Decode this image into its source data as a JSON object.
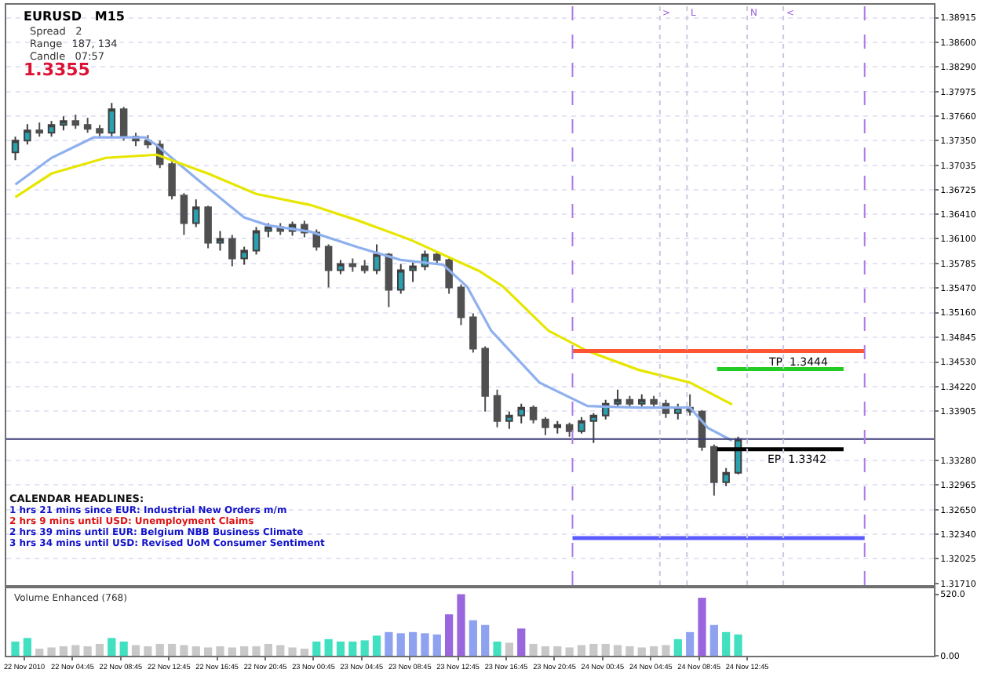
{
  "chart_data": [
    {
      "type": "candlestick",
      "tick_labels": "y",
      "grid": "y",
      "x": [
        "2010-11-22T00:00",
        "2010-11-22T01:00",
        "2010-11-22T02:00",
        "2010-11-22T03:00",
        "2010-11-22T04:00",
        "2010-11-22T05:00",
        "2010-11-22T06:00",
        "2010-11-22T07:00",
        "2010-11-22T08:00",
        "2010-11-22T09:00",
        "2010-11-22T10:00",
        "2010-11-22T11:00",
        "2010-11-22T12:00",
        "2010-11-22T13:00",
        "2010-11-22T14:00",
        "2010-11-22T15:00",
        "2010-11-22T16:00",
        "2010-11-22T17:00",
        "2010-11-22T18:00",
        "2010-11-22T19:00",
        "2010-11-22T20:00",
        "2010-11-22T21:00",
        "2010-11-22T22:00",
        "2010-11-22T23:00",
        "2010-11-23T00:00",
        "2010-11-23T01:00",
        "2010-11-23T02:00",
        "2010-11-23T03:00",
        "2010-11-23T04:00",
        "2010-11-23T05:00",
        "2010-11-23T06:00",
        "2010-11-23T07:00",
        "2010-11-23T08:00",
        "2010-11-23T09:00",
        "2010-11-23T10:00",
        "2010-11-23T11:00",
        "2010-11-23T12:00",
        "2010-11-23T13:00",
        "2010-11-23T14:00",
        "2010-11-23T15:00",
        "2010-11-23T16:00",
        "2010-11-23T17:00",
        "2010-11-23T18:00",
        "2010-11-23T19:00",
        "2010-11-23T20:00",
        "2010-11-23T21:00",
        "2010-11-23T22:00",
        "2010-11-23T23:00",
        "2010-11-24T00:00",
        "2010-11-24T01:00",
        "2010-11-24T02:00",
        "2010-11-24T03:00",
        "2010-11-24T04:00",
        "2010-11-24T05:00",
        "2010-11-24T06:00",
        "2010-11-24T07:00",
        "2010-11-24T08:00",
        "2010-11-24T09:00",
        "2010-11-24T10:00",
        "2010-11-24T11:00",
        "2010-11-24T12:00"
      ],
      "ohlc": [
        [
          1.372,
          1.374,
          1.371,
          1.3735
        ],
        [
          1.3735,
          1.3756,
          1.373,
          1.3748
        ],
        [
          1.3748,
          1.3758,
          1.374,
          1.3745
        ],
        [
          1.3745,
          1.376,
          1.374,
          1.3755
        ],
        [
          1.3755,
          1.3766,
          1.3748,
          1.376
        ],
        [
          1.376,
          1.3768,
          1.375,
          1.3755
        ],
        [
          1.3755,
          1.3764,
          1.3745,
          1.375
        ],
        [
          1.375,
          1.3755,
          1.3738,
          1.3745
        ],
        [
          1.3745,
          1.3783,
          1.374,
          1.3775
        ],
        [
          1.3775,
          1.3778,
          1.3735,
          1.374
        ],
        [
          1.374,
          1.3745,
          1.3728,
          1.3735
        ],
        [
          1.3735,
          1.3742,
          1.3725,
          1.373
        ],
        [
          1.373,
          1.3735,
          1.37,
          1.3705
        ],
        [
          1.3705,
          1.3708,
          1.366,
          1.3665
        ],
        [
          1.3665,
          1.3668,
          1.3615,
          1.363
        ],
        [
          1.363,
          1.366,
          1.3625,
          1.365
        ],
        [
          1.365,
          1.3652,
          1.3598,
          1.3605
        ],
        [
          1.3605,
          1.362,
          1.3595,
          1.361
        ],
        [
          1.361,
          1.3615,
          1.3575,
          1.3585
        ],
        [
          1.3585,
          1.36,
          1.3577,
          1.3595
        ],
        [
          1.3595,
          1.3625,
          1.359,
          1.362
        ],
        [
          1.362,
          1.363,
          1.3612,
          1.3625
        ],
        [
          1.3625,
          1.363,
          1.3615,
          1.362
        ],
        [
          1.362,
          1.3632,
          1.3614,
          1.3628
        ],
        [
          1.3628,
          1.3633,
          1.3612,
          1.3618
        ],
        [
          1.3618,
          1.3622,
          1.3595,
          1.36
        ],
        [
          1.36,
          1.3603,
          1.3548,
          1.357
        ],
        [
          1.357,
          1.3583,
          1.3565,
          1.3578
        ],
        [
          1.3578,
          1.3585,
          1.3568,
          1.3575
        ],
        [
          1.3575,
          1.3583,
          1.3566,
          1.357
        ],
        [
          1.357,
          1.3603,
          1.3565,
          1.359
        ],
        [
          1.359,
          1.3592,
          1.3523,
          1.3545
        ],
        [
          1.3545,
          1.3578,
          1.354,
          1.357
        ],
        [
          1.357,
          1.358,
          1.3555,
          1.3575
        ],
        [
          1.3575,
          1.3595,
          1.357,
          1.359
        ],
        [
          1.359,
          1.3593,
          1.3578,
          1.3583
        ],
        [
          1.3583,
          1.3585,
          1.354,
          1.3548
        ],
        [
          1.3548,
          1.3552,
          1.35,
          1.351
        ],
        [
          1.351,
          1.3515,
          1.3465,
          1.347
        ],
        [
          1.347,
          1.3473,
          1.339,
          1.341
        ],
        [
          1.341,
          1.3418,
          1.337,
          1.3378
        ],
        [
          1.3378,
          1.339,
          1.3368,
          1.3385
        ],
        [
          1.3385,
          1.34,
          1.3375,
          1.3395
        ],
        [
          1.3395,
          1.3398,
          1.3375,
          1.338
        ],
        [
          1.338,
          1.3383,
          1.336,
          1.337
        ],
        [
          1.337,
          1.3378,
          1.3362,
          1.3373
        ],
        [
          1.3373,
          1.3376,
          1.3358,
          1.3365
        ],
        [
          1.3365,
          1.3383,
          1.3362,
          1.3378
        ],
        [
          1.3378,
          1.3388,
          1.335,
          1.3385
        ],
        [
          1.3385,
          1.3405,
          1.338,
          1.34
        ],
        [
          1.34,
          1.3418,
          1.3395,
          1.3405
        ],
        [
          1.3405,
          1.341,
          1.3395,
          1.34
        ],
        [
          1.34,
          1.3412,
          1.3396,
          1.3405
        ],
        [
          1.3405,
          1.341,
          1.3395,
          1.34
        ],
        [
          1.34,
          1.3405,
          1.3382,
          1.3388
        ],
        [
          1.3388,
          1.34,
          1.338,
          1.3395
        ],
        [
          1.3395,
          1.3412,
          1.3385,
          1.339
        ],
        [
          1.339,
          1.3392,
          1.334,
          1.3345
        ],
        [
          1.3345,
          1.3348,
          1.3283,
          1.33
        ],
        [
          1.33,
          1.3318,
          1.3295,
          1.3312
        ],
        [
          1.3312,
          1.3358,
          1.331,
          1.3355
        ]
      ],
      "series": [
        {
          "type": "line",
          "color": "#8fb0ee",
          "x": [
            "2010-11-22T00:00",
            "2010-11-22T03:00",
            "2010-11-22T06:30",
            "2010-11-22T10:45",
            "2010-11-22T11:45",
            "2010-11-22T15:00",
            "2010-11-22T19:00",
            "2010-11-22T21:00",
            "2010-11-23T00:30",
            "2010-11-23T04:30",
            "2010-11-23T08:00",
            "2010-11-23T11:30",
            "2010-11-23T13:30",
            "2010-11-23T15:30",
            "2010-11-23T19:30",
            "2010-11-23T23:30",
            "2010-11-24T03:45",
            "2010-11-24T08:00",
            "2010-11-24T09:30",
            "2010-11-24T11:30"
          ],
          "values": [
            1.3679,
            1.3713,
            1.3739,
            1.3739,
            1.3729,
            1.3687,
            1.3637,
            1.3627,
            1.3619,
            1.3599,
            1.3583,
            1.3577,
            1.3549,
            1.3493,
            1.3427,
            1.3397,
            1.3395,
            1.3395,
            1.3369,
            1.3353
          ]
        },
        {
          "type": "line",
          "color": "#e6e600",
          "x": [
            "2010-11-22T00:00",
            "2010-11-22T03:00",
            "2010-11-22T07:30",
            "2010-11-22T11:45",
            "2010-11-22T16:00",
            "2010-11-22T20:00",
            "2010-11-23T00:30",
            "2010-11-23T04:30",
            "2010-11-23T08:45",
            "2010-11-23T14:30",
            "2010-11-23T16:30",
            "2010-11-23T20:15",
            "2010-11-23T23:30",
            "2010-11-24T03:45",
            "2010-11-24T08:00",
            "2010-11-24T11:30"
          ],
          "values": [
            1.3663,
            1.3693,
            1.3713,
            1.3717,
            1.3693,
            1.3667,
            1.3653,
            1.3633,
            1.3609,
            1.3569,
            1.3549,
            1.3493,
            1.3467,
            1.3443,
            1.3427,
            1.3399
          ]
        },
        {
          "type": "line",
          "color": "#ff5533",
          "x": [
            "2010-11-23T22:15",
            "2010-11-24T22:30"
          ],
          "values": [
            1.3467,
            1.3467
          ]
        },
        {
          "type": "line",
          "color": "#5a5aff",
          "x": [
            "2010-11-23T22:15",
            "2010-11-24T22:30"
          ],
          "values": [
            1.3229,
            1.3229
          ]
        },
        {
          "type": "line",
          "color": "#22cc22",
          "x": [
            "2010-11-24T10:15",
            "2010-11-24T20:45"
          ],
          "values": [
            1.3444,
            1.3444
          ]
        },
        {
          "type": "line",
          "color": "#000000",
          "x": [
            "2010-11-24T10:15",
            "2010-11-24T20:45"
          ],
          "values": [
            1.3342,
            1.3342
          ]
        }
      ],
      "ref_lines": [
        {
          "axis": "y",
          "value": 1.3355,
          "color": "#3c3c78"
        },
        {
          "axis": "x",
          "value": "2010-11-23T22:15",
          "color": "#b07ae6",
          "line_style": "dashed"
        },
        {
          "axis": "x",
          "value": "2010-11-24T22:30",
          "color": "#b07ae6",
          "line_style": "dashed"
        },
        {
          "axis": "x",
          "value": "2010-11-24T05:30",
          "label": ">",
          "color": "#c8c8e0",
          "line_style": "dotted"
        },
        {
          "axis": "x",
          "value": "2010-11-24T07:45",
          "label": "L",
          "color": "#c8c8e0",
          "line_style": "dotted"
        },
        {
          "axis": "x",
          "value": "2010-11-24T12:45",
          "label": "N",
          "color": "#c8c8e0",
          "line_style": "dotted"
        },
        {
          "axis": "x",
          "value": "2010-11-24T15:45",
          "label": "<",
          "color": "#c8c8e0",
          "line_style": "dotted"
        }
      ],
      "annotations": [
        "EURUSD   M15",
        "Spread   2",
        "Range   187, 134",
        "Candle   07:57",
        "1.3355",
        "TP  1.3444",
        "EP  1.3342",
        "CALENDAR HEADLINES:",
        "1 hrs 21 mins since EUR: Industrial New Orders m/m",
        "2 hrs 9 mins until USD: Unemployment Claims",
        "2 hrs 39 mins until EUR: Belgium NBB Business Climate",
        "3 hrs 34 mins until USD: Revised UoM Consumer Sentiment"
      ],
      "xlim": [
        "2010-11-21T23:15",
        "2010-11-25T04:15"
      ],
      "ylim": [
        1.3169,
        1.3908
      ],
      "yticks": [
        {
          "value": 1.38915,
          "label": "1.38915"
        },
        {
          "value": 1.386,
          "label": "1.38600"
        },
        {
          "value": 1.3829,
          "label": "1.38290"
        },
        {
          "value": 1.37975,
          "label": "1.37975"
        },
        {
          "value": 1.3766,
          "label": "1.37660"
        },
        {
          "value": 1.3735,
          "label": "1.37350"
        },
        {
          "value": 1.37035,
          "label": "1.37035"
        },
        {
          "value": 1.36725,
          "label": "1.36725"
        },
        {
          "value": 1.3641,
          "label": "1.36410"
        },
        {
          "value": 1.361,
          "label": "1.36100"
        },
        {
          "value": 1.35785,
          "label": "1.35785"
        },
        {
          "value": 1.3547,
          "label": "1.35470"
        },
        {
          "value": 1.3516,
          "label": "1.35160"
        },
        {
          "value": 1.34845,
          "label": "1.34845"
        },
        {
          "value": 1.3453,
          "label": "1.34530"
        },
        {
          "value": 1.3422,
          "label": "1.34220"
        },
        {
          "value": 1.33905,
          "label": "1.33905"
        },
        {
          "value": 1.3328,
          "label": "1.33280"
        },
        {
          "value": 1.32965,
          "label": "1.32965"
        },
        {
          "value": 1.3265,
          "label": "1.32650"
        },
        {
          "value": 1.3234,
          "label": "1.32340"
        },
        {
          "value": 1.32025,
          "label": "1.32025"
        },
        {
          "value": 1.3171,
          "label": "1.31710"
        }
      ]
    },
    {
      "type": "bar",
      "title": "Volume Enhanced (768)",
      "x": [
        "2010-11-22T00:00",
        "2010-11-22T01:00",
        "2010-11-22T02:00",
        "2010-11-22T03:00",
        "2010-11-22T04:00",
        "2010-11-22T05:00",
        "2010-11-22T06:00",
        "2010-11-22T07:00",
        "2010-11-22T08:00",
        "2010-11-22T09:00",
        "2010-11-22T10:00",
        "2010-11-22T11:00",
        "2010-11-22T12:00",
        "2010-11-22T13:00",
        "2010-11-22T14:00",
        "2010-11-22T15:00",
        "2010-11-22T16:00",
        "2010-11-22T17:00",
        "2010-11-22T18:00",
        "2010-11-22T19:00",
        "2010-11-22T20:00",
        "2010-11-22T21:00",
        "2010-11-22T22:00",
        "2010-11-22T23:00",
        "2010-11-23T00:00",
        "2010-11-23T01:00",
        "2010-11-23T02:00",
        "2010-11-23T03:00",
        "2010-11-23T04:00",
        "2010-11-23T05:00",
        "2010-11-23T06:00",
        "2010-11-23T07:00",
        "2010-11-23T08:00",
        "2010-11-23T09:00",
        "2010-11-23T10:00",
        "2010-11-23T11:00",
        "2010-11-23T12:00",
        "2010-11-23T13:00",
        "2010-11-23T14:00",
        "2010-11-23T15:00",
        "2010-11-23T16:00",
        "2010-11-23T17:00",
        "2010-11-23T18:00",
        "2010-11-23T19:00",
        "2010-11-23T20:00",
        "2010-11-23T21:00",
        "2010-11-23T22:00",
        "2010-11-23T23:00",
        "2010-11-24T00:00",
        "2010-11-24T01:00",
        "2010-11-24T02:00",
        "2010-11-24T03:00",
        "2010-11-24T04:00",
        "2010-11-24T05:00",
        "2010-11-24T06:00",
        "2010-11-24T07:00",
        "2010-11-24T08:00",
        "2010-11-24T09:00",
        "2010-11-24T10:00",
        "2010-11-24T11:00",
        "2010-11-24T12:00"
      ],
      "values": [
        120,
        150,
        60,
        70,
        80,
        90,
        80,
        100,
        150,
        120,
        90,
        80,
        100,
        100,
        90,
        80,
        70,
        80,
        70,
        80,
        80,
        100,
        90,
        70,
        60,
        120,
        140,
        120,
        120,
        130,
        170,
        200,
        190,
        200,
        190,
        180,
        350,
        520,
        300,
        260,
        120,
        110,
        230,
        100,
        80,
        80,
        70,
        90,
        100,
        100,
        90,
        80,
        70,
        80,
        90,
        140,
        200,
        490,
        260,
        200,
        180
      ],
      "colors": [
        "#40e0c0",
        "#40e0c0",
        "#c8c8c8",
        "#c8c8c8",
        "#c8c8c8",
        "#c8c8c8",
        "#c8c8c8",
        "#c8c8c8",
        "#40e0c0",
        "#40e0c0",
        "#c8c8c8",
        "#c8c8c8",
        "#c8c8c8",
        "#c8c8c8",
        "#c8c8c8",
        "#c8c8c8",
        "#c8c8c8",
        "#c8c8c8",
        "#c8c8c8",
        "#c8c8c8",
        "#c8c8c8",
        "#c8c8c8",
        "#c8c8c8",
        "#c8c8c8",
        "#c8c8c8",
        "#40e0c0",
        "#40e0c0",
        "#40e0c0",
        "#40e0c0",
        "#40e0c0",
        "#40e0c0",
        "#8ea2f0",
        "#8ea2f0",
        "#8ea2f0",
        "#8ea2f0",
        "#8ea2f0",
        "#9966dd",
        "#9966dd",
        "#8ea2f0",
        "#8ea2f0",
        "#40e0c0",
        "#c8c8c8",
        "#9966dd",
        "#c8c8c8",
        "#c8c8c8",
        "#c8c8c8",
        "#c8c8c8",
        "#c8c8c8",
        "#c8c8c8",
        "#c8c8c8",
        "#c8c8c8",
        "#c8c8c8",
        "#c8c8c8",
        "#c8c8c8",
        "#c8c8c8",
        "#40e0c0",
        "#8ea2f0",
        "#9966dd",
        "#8ea2f0",
        "#40e0c0",
        "#40e0c0"
      ],
      "xlim": [
        "2010-11-21T23:15",
        "2010-11-25T04:15"
      ],
      "xticks": [
        {
          "value": "2010-11-22T00:45",
          "label": "22 Nov 2010"
        },
        {
          "value": "2010-11-22T04:45",
          "label": "22 Nov 04:45"
        },
        {
          "value": "2010-11-22T08:45",
          "label": "22 Nov 08:45"
        },
        {
          "value": "2010-11-22T12:45",
          "label": "22 Nov 12:45"
        },
        {
          "value": "2010-11-22T16:45",
          "label": "22 Nov 16:45"
        },
        {
          "value": "2010-11-22T20:45",
          "label": "22 Nov 20:45"
        },
        {
          "value": "2010-11-23T00:45",
          "label": "23 Nov 00:45"
        },
        {
          "value": "2010-11-23T04:45",
          "label": "23 Nov 04:45"
        },
        {
          "value": "2010-11-23T08:45",
          "label": "23 Nov 08:45"
        },
        {
          "value": "2010-11-23T12:45",
          "label": "23 Nov 12:45"
        },
        {
          "value": "2010-11-23T16:45",
          "label": "23 Nov 16:45"
        },
        {
          "value": "2010-11-23T20:45",
          "label": "23 Nov 20:45"
        },
        {
          "value": "2010-11-24T00:45",
          "label": "24 Nov 00:45"
        },
        {
          "value": "2010-11-24T04:45",
          "label": "24 Nov 04:45"
        },
        {
          "value": "2010-11-24T08:45",
          "label": "24 Nov 08:45"
        },
        {
          "value": "2010-11-24T12:45",
          "label": "24 Nov 12:45"
        }
      ],
      "ylim": [
        0,
        570
      ],
      "yticks": [
        {
          "value": 520,
          "label": "520.0"
        },
        {
          "value": 0,
          "label": "0.00"
        }
      ]
    }
  ]
}
